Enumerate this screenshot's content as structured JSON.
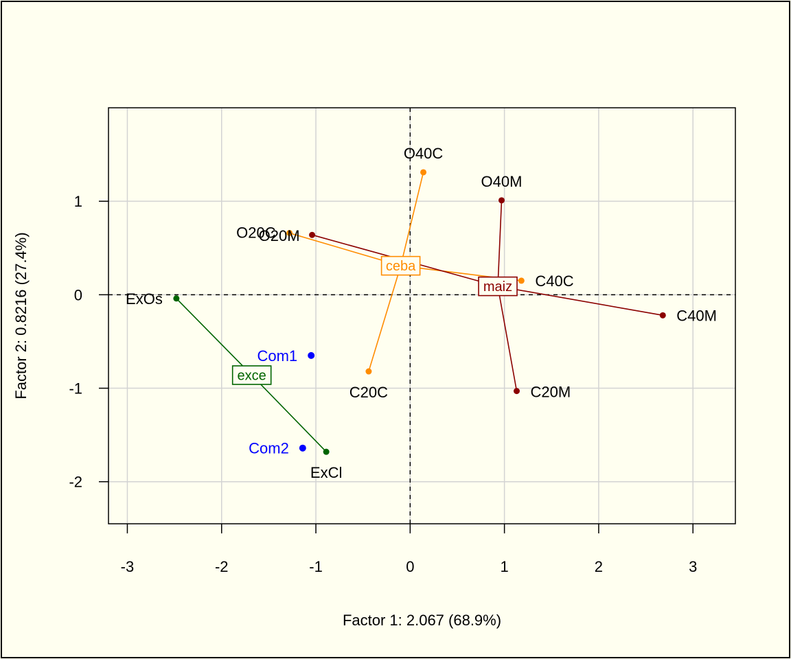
{
  "chart_data": {
    "type": "scatter",
    "title": "",
    "xlabel": "Factor 1: 2.067 (68.9%)",
    "ylabel": "Factor 2: 0.8216 (27.4%)",
    "xlim": [
      -3.2,
      3.45
    ],
    "ylim": [
      -2.45,
      2.0
    ],
    "xticks": [
      "-3",
      "-2",
      "-1",
      "0",
      "1",
      "2",
      "3"
    ],
    "yticks": [
      "-2",
      "-1",
      "0",
      "1"
    ],
    "grid": true,
    "reference_lines": [
      {
        "axis": "x",
        "value": 0
      },
      {
        "axis": "y",
        "value": 0
      }
    ],
    "groups": [
      {
        "label": "ceba",
        "color": "#ff8c00",
        "center": [
          -0.1,
          0.31
        ],
        "points": [
          {
            "label": "O40C",
            "x": 0.14,
            "y": 1.31
          },
          {
            "label": "O20C",
            "x": -1.28,
            "y": 0.66
          },
          {
            "label": "C40C",
            "x": 1.18,
            "y": 0.15
          },
          {
            "label": "C20C",
            "x": -0.44,
            "y": -0.82
          }
        ]
      },
      {
        "label": "maiz",
        "color": "#8b0000",
        "center": [
          0.93,
          0.09
        ],
        "points": [
          {
            "label": "O40M",
            "x": 0.97,
            "y": 1.01
          },
          {
            "label": "O20M",
            "x": -1.04,
            "y": 0.64
          },
          {
            "label": "C40M",
            "x": 2.68,
            "y": -0.22
          },
          {
            "label": "C20M",
            "x": 1.13,
            "y": -1.03
          }
        ]
      },
      {
        "label": "exce",
        "color": "#006400",
        "center": [
          -1.68,
          -0.86
        ],
        "points": [
          {
            "label": "ExOs",
            "x": -2.48,
            "y": -0.04
          },
          {
            "label": "ExCl",
            "x": -0.89,
            "y": -1.68
          }
        ]
      }
    ],
    "supplementary": {
      "color": "#0000ff",
      "points": [
        {
          "label": "Com1",
          "x": -1.05,
          "y": -0.65
        },
        {
          "label": "Com2",
          "x": -1.14,
          "y": -1.64
        }
      ]
    }
  }
}
